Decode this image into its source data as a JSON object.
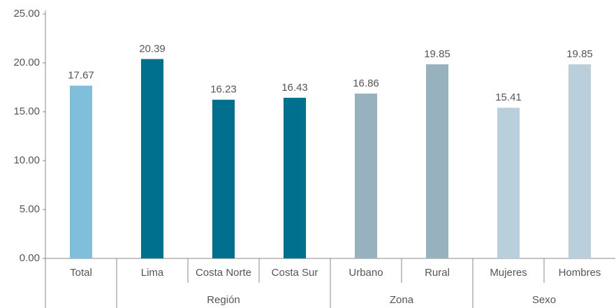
{
  "chart_data": {
    "type": "bar",
    "categories": [
      "Total",
      "Lima",
      "Costa Norte",
      "Costa Sur",
      "Urbano",
      "Rural",
      "Mujeres",
      "Hombres"
    ],
    "groups": [
      null,
      "Región",
      "Región",
      "Región",
      "Zona",
      "Zona",
      "Sexo",
      "Sexo"
    ],
    "values": [
      17.67,
      20.39,
      16.23,
      16.43,
      16.86,
      19.85,
      15.41,
      19.85
    ],
    "colors": [
      "#7fbfdc",
      "#00708f",
      "#00708f",
      "#00708f",
      "#97b1bf",
      "#97b1bf",
      "#b9d0dc",
      "#b9d0dc"
    ],
    "ylim": [
      0,
      25
    ],
    "yticks": [
      {
        "value": 0,
        "label": "0.00"
      },
      {
        "value": 5,
        "label": "5.00"
      },
      {
        "value": 10,
        "label": "10.00"
      },
      {
        "value": 15,
        "label": "15.00"
      },
      {
        "value": 20,
        "label": "20.00"
      },
      {
        "value": 25,
        "label": "25.00"
      }
    ],
    "grid": false
  }
}
